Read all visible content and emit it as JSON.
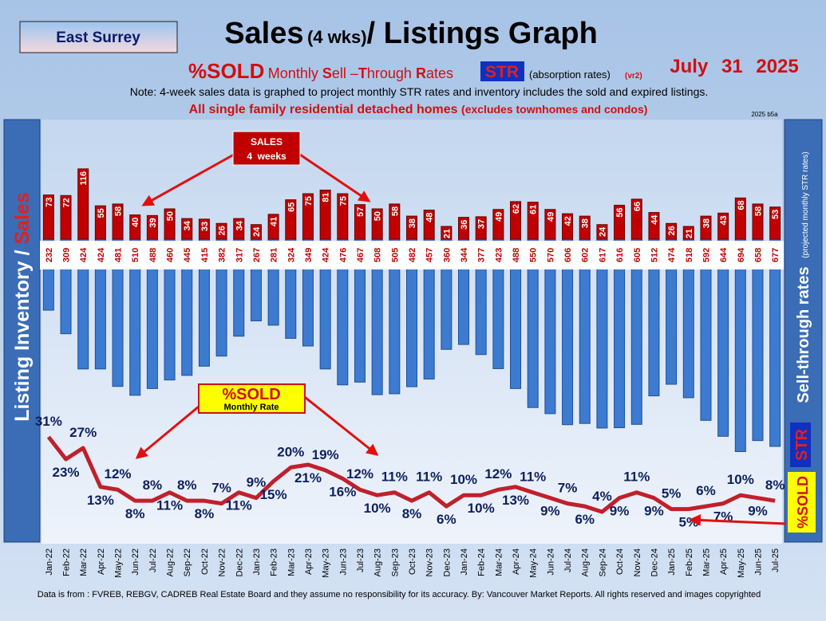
{
  "header": {
    "region": "East Surrey",
    "title": [
      "Sales",
      "(4 wks)",
      "/ Listings Graph"
    ],
    "subtitle": [
      "%SOLD",
      "Monthly ",
      "S",
      "ell –",
      "T",
      "hrough ",
      "R",
      "ates"
    ],
    "str_badge": "STR",
    "absorption": "(absorption rates)",
    "version": "(vr2)",
    "date": [
      "July",
      "31",
      "2025"
    ],
    "note": "Note: 4-week sales data is graphed to project monthly STR rates and inventory includes the sold and expired listings.",
    "scope": "All single family residential detached homes",
    "scope_note": "(excludes townhomes and condos)",
    "code": "2025 b5a"
  },
  "chart_data": {
    "type": "bar",
    "categories": [
      "Jan-22",
      "Feb-22",
      "Mar-22",
      "Apr-22",
      "May-22",
      "Jun-22",
      "Jul-22",
      "Aug-22",
      "Sep-22",
      "Oct-22",
      "Nov-22",
      "Dec-22",
      "Jan-23",
      "Feb-23",
      "Mar-23",
      "Apr-23",
      "May-23",
      "Jun-23",
      "Jul-23",
      "Aug-23",
      "Sep-23",
      "Oct-23",
      "Nov-23",
      "Dec-23",
      "Jan-24",
      "Feb-24",
      "Mar-24",
      "Apr-24",
      "May-24",
      "Jun-24",
      "Jul-24",
      "Aug-24",
      "Sep-24",
      "Oct-24",
      "Nov-24",
      "Dec-24",
      "Jan-25",
      "Feb-25",
      "Mar-25",
      "Apr-25",
      "May-25",
      "Jun-25",
      "Jul-25"
    ],
    "series": [
      {
        "color": "#c00000",
        "values": [
          73,
          72,
          116,
          55,
          58,
          40,
          39,
          50,
          34,
          33,
          26,
          34,
          24,
          41,
          65,
          75,
          81,
          75,
          57,
          50,
          58,
          38,
          48,
          21,
          36,
          37,
          49,
          62,
          61,
          49,
          42,
          38,
          24,
          56,
          66,
          44,
          26,
          21,
          38,
          43,
          68,
          58,
          53
        ]
      },
      {
        "color": "#3d7bd0",
        "values": [
          232,
          309,
          424,
          424,
          481,
          510,
          488,
          460,
          445,
          415,
          382,
          317,
          267,
          281,
          324,
          349,
          424,
          476,
          467,
          508,
          505,
          482,
          457,
          360,
          344,
          377,
          423,
          488,
          550,
          570,
          606,
          602,
          617,
          616,
          605,
          512,
          474,
          518,
          592,
          644,
          694,
          658,
          677
        ]
      },
      {
        "type": "line",
        "color": "#c0202c",
        "values": [
          31,
          23,
          27,
          13,
          12,
          8,
          8,
          11,
          8,
          8,
          7,
          11,
          9,
          15,
          20,
          21,
          19,
          16,
          12,
          10,
          11,
          8,
          11,
          6,
          10,
          10,
          12,
          13,
          11,
          9,
          7,
          6,
          4,
          9,
          11,
          9,
          5,
          5,
          6,
          7,
          10,
          9,
          8
        ],
        "value_labels": [
          "31%",
          "23%",
          "27%",
          "13%",
          "12%",
          "8%",
          "8%",
          "11%",
          "8%",
          "8%",
          "7%",
          "11%",
          "9%",
          "15%",
          "20%",
          "21%",
          "19%",
          "16%",
          "12%",
          "10%",
          "11%",
          "8%",
          "11%",
          "6%",
          "10%",
          "10%",
          "12%",
          "13%",
          "11%",
          "9%",
          "7%",
          "6%",
          "4%",
          "9%",
          "11%",
          "9%",
          "5%",
          "5%",
          "6%",
          "7%",
          "10%",
          "9%",
          "8%"
        ]
      }
    ],
    "annotations": [
      {
        "lines": [
          "SALES",
          "4  weeks"
        ]
      },
      {
        "lines": [
          "%SOLD",
          "Monthly Rate"
        ]
      }
    ]
  },
  "side": {
    "left": [
      "Listing Inventory / ",
      "Sales"
    ],
    "right": "Sell-through rates",
    "right_str": "STR",
    "right_note": "(projected monthly STR rates)",
    "right_badge": "%SOLD"
  },
  "footer": "Data is from : FVREB, REBGV, CADREB Real Estate Board and they assume no responsibility for its accuracy. By: Vancouver Market Reports. All rights reserved and  images copyrighted"
}
